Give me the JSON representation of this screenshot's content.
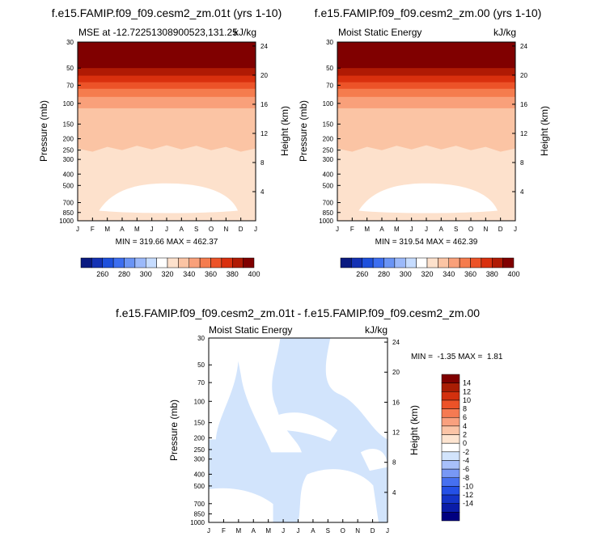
{
  "figure": {
    "panel1_title": "f.e15.FAMIP.f09_f09.cesm2_zm.01t (yrs 1-10)",
    "panel2_title": "f.e15.FAMIP.f09_f09.cesm2_zm.00 (yrs 1-10)",
    "diff_title": "f.e15.FAMIP.f09_f09.cesm2_zm.01t - f.e15.FAMIP.f09_f09.cesm2_zm.00"
  },
  "chart_data": [
    {
      "type": "heatmap",
      "title": "f.e15.FAMIP.f09_f09.cesm2_zm.01t (yrs 1-10)",
      "subtitle_left": "MSE at -12.72251308900523,131.25",
      "subtitle_right": "kJ/kg",
      "xlabel": "",
      "ylabel": "Pressure (mb)",
      "ylabel_right": "Height (km)",
      "x_ticks": [
        "J",
        "F",
        "M",
        "A",
        "M",
        "J",
        "J",
        "A",
        "S",
        "O",
        "N",
        "D",
        "J"
      ],
      "y_ticks": [
        "30",
        "50",
        "70",
        "100",
        "150",
        "200",
        "250",
        "300",
        "400",
        "500",
        "700",
        "850",
        "1000"
      ],
      "y_right_ticks": [
        "24",
        "20",
        "16",
        "12",
        "8",
        "4"
      ],
      "ylim": [
        1000,
        30
      ],
      "stats": "MIN = 319.66 MAX = 462.37",
      "colorbar_labels": [
        "260",
        "280",
        "300",
        "320",
        "340",
        "360",
        "380",
        "400"
      ],
      "bands": [
        {
          "p_top": 30,
          "p_bottom": 50,
          "value": 410
        },
        {
          "p_top": 50,
          "p_bottom": 58,
          "value": 395
        },
        {
          "p_top": 58,
          "p_bottom": 66,
          "value": 385
        },
        {
          "p_top": 66,
          "p_bottom": 75,
          "value": 375
        },
        {
          "p_top": 75,
          "p_bottom": 88,
          "value": 365
        },
        {
          "p_top": 88,
          "p_bottom": 110,
          "value": 355
        },
        {
          "p_top": 110,
          "p_bottom": 300,
          "value": 345
        },
        {
          "p_top": 300,
          "p_bottom": 1000,
          "value": 335
        }
      ],
      "low_region": {
        "p_range": [
          480,
          820
        ],
        "value": 325
      }
    },
    {
      "type": "heatmap",
      "title": "f.e15.FAMIP.f09_f09.cesm2_zm.00 (yrs 1-10)",
      "subtitle_left": "Moist Static Energy",
      "subtitle_right": "kJ/kg",
      "xlabel": "",
      "ylabel": "Pressure (mb)",
      "ylabel_right": "Height (km)",
      "x_ticks": [
        "J",
        "F",
        "M",
        "A",
        "M",
        "J",
        "J",
        "A",
        "S",
        "O",
        "N",
        "D",
        "J"
      ],
      "y_ticks": [
        "30",
        "50",
        "70",
        "100",
        "150",
        "200",
        "250",
        "300",
        "400",
        "500",
        "700",
        "850",
        "1000"
      ],
      "y_right_ticks": [
        "24",
        "20",
        "16",
        "12",
        "8",
        "4"
      ],
      "ylim": [
        1000,
        30
      ],
      "stats": "MIN = 319.54 MAX = 462.39",
      "colorbar_labels": [
        "260",
        "280",
        "300",
        "320",
        "340",
        "360",
        "380",
        "400"
      ],
      "bands": [
        {
          "p_top": 30,
          "p_bottom": 50,
          "value": 410
        },
        {
          "p_top": 50,
          "p_bottom": 58,
          "value": 395
        },
        {
          "p_top": 58,
          "p_bottom": 66,
          "value": 385
        },
        {
          "p_top": 66,
          "p_bottom": 75,
          "value": 375
        },
        {
          "p_top": 75,
          "p_bottom": 88,
          "value": 365
        },
        {
          "p_top": 88,
          "p_bottom": 110,
          "value": 355
        },
        {
          "p_top": 110,
          "p_bottom": 300,
          "value": 345
        },
        {
          "p_top": 300,
          "p_bottom": 1000,
          "value": 335
        }
      ],
      "low_region": {
        "p_range": [
          480,
          820
        ],
        "value": 325
      }
    },
    {
      "type": "heatmap",
      "title": "f.e15.FAMIP.f09_f09.cesm2_zm.01t - f.e15.FAMIP.f09_f09.cesm2_zm.00",
      "subtitle_left": "Moist Static Energy",
      "subtitle_right": "kJ/kg",
      "xlabel": "",
      "ylabel": "Pressure (mb)",
      "ylabel_right": "Height (km)",
      "x_ticks": [
        "J",
        "F",
        "M",
        "A",
        "M",
        "J",
        "J",
        "A",
        "S",
        "O",
        "N",
        "D",
        "J"
      ],
      "y_ticks": [
        "30",
        "50",
        "70",
        "100",
        "150",
        "200",
        "250",
        "300",
        "400",
        "500",
        "700",
        "850",
        "1000"
      ],
      "y_right_ticks": [
        "24",
        "20",
        "16",
        "12",
        "8",
        "4"
      ],
      "ylim": [
        1000,
        30
      ],
      "stats": "MIN =  -1.35 MAX =  1.81",
      "colorbar_labels": [
        "14",
        "12",
        "10",
        "8",
        "6",
        "4",
        "2",
        "0",
        "-2",
        "-4",
        "-6",
        "-8",
        "-10",
        "-12",
        "-14"
      ],
      "background_value": -1,
      "positive_value": 1
    }
  ],
  "colors": {
    "mse_levels": [
      "#0a1a80",
      "#1432b4",
      "#1e50dc",
      "#3c6ef0",
      "#6a94f5",
      "#9bb9fa",
      "#c6dcff",
      "#ffffff",
      "#fde1cc",
      "#fbc4a4",
      "#f9a07a",
      "#f57c4e",
      "#ec5328",
      "#d9300e",
      "#b01a04",
      "#800000"
    ],
    "diff_levels": [
      "#000080",
      "#0a1ca8",
      "#1434c8",
      "#2450e6",
      "#4670f0",
      "#7898f5",
      "#a8c0fa",
      "#d2e4fc",
      "#ffffff",
      "#fde4d0",
      "#fbc4a6",
      "#f9a07e",
      "#f57a52",
      "#ec5228",
      "#d3300e",
      "#a91d04",
      "#800000"
    ]
  }
}
